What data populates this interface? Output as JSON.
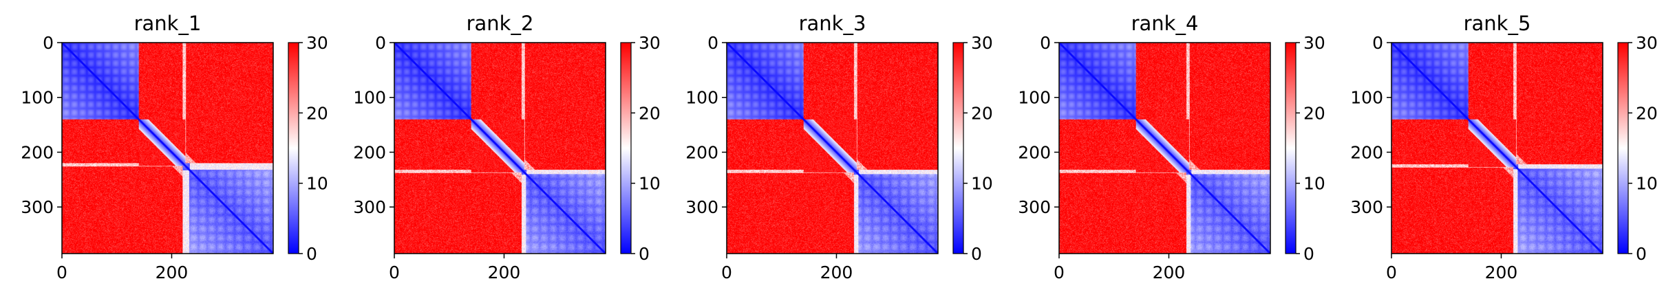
{
  "chart_data": [
    {
      "type": "heatmap",
      "title": "rank_1",
      "matrix_size": 385,
      "x_ticks": [
        0,
        200
      ],
      "y_ticks": [
        0,
        100,
        200,
        300
      ],
      "colorbar": {
        "min": 0,
        "max": 30,
        "ticks": [
          0,
          10,
          20,
          30
        ],
        "colormap": "bwr"
      },
      "domains": {
        "d1_end": 140,
        "d2_start": 220,
        "d2_inner_start": 232
      },
      "grid": false
    },
    {
      "type": "heatmap",
      "title": "rank_2",
      "matrix_size": 385,
      "x_ticks": [
        0,
        200
      ],
      "y_ticks": [
        0,
        100,
        200,
        300
      ],
      "colorbar": {
        "min": 0,
        "max": 30,
        "ticks": [
          0,
          10,
          20,
          30
        ],
        "colormap": "bwr"
      },
      "domains": {
        "d1_end": 140,
        "d2_start": 232,
        "d2_inner_start": 240
      },
      "grid": false
    },
    {
      "type": "heatmap",
      "title": "rank_3",
      "matrix_size": 385,
      "x_ticks": [
        0,
        200
      ],
      "y_ticks": [
        0,
        100,
        200,
        300
      ],
      "colorbar": {
        "min": 0,
        "max": 30,
        "ticks": [
          0,
          10,
          20,
          30
        ],
        "colormap": "bwr"
      },
      "domains": {
        "d1_end": 140,
        "d2_start": 232,
        "d2_inner_start": 240
      },
      "grid": false
    },
    {
      "type": "heatmap",
      "title": "rank_4",
      "matrix_size": 385,
      "x_ticks": [
        0,
        200
      ],
      "y_ticks": [
        0,
        100,
        200,
        300
      ],
      "colorbar": {
        "min": 0,
        "max": 30,
        "ticks": [
          0,
          10,
          20,
          30
        ],
        "colormap": "bwr"
      },
      "domains": {
        "d1_end": 140,
        "d2_start": 232,
        "d2_inner_start": 240
      },
      "grid": false
    },
    {
      "type": "heatmap",
      "title": "rank_5",
      "matrix_size": 385,
      "x_ticks": [
        0,
        200
      ],
      "y_ticks": [
        0,
        100,
        200,
        300
      ],
      "colorbar": {
        "min": 0,
        "max": 30,
        "ticks": [
          0,
          10,
          20,
          30
        ],
        "colormap": "bwr"
      },
      "domains": {
        "d1_end": 140,
        "d2_start": 222,
        "d2_inner_start": 230
      },
      "grid": false
    }
  ]
}
